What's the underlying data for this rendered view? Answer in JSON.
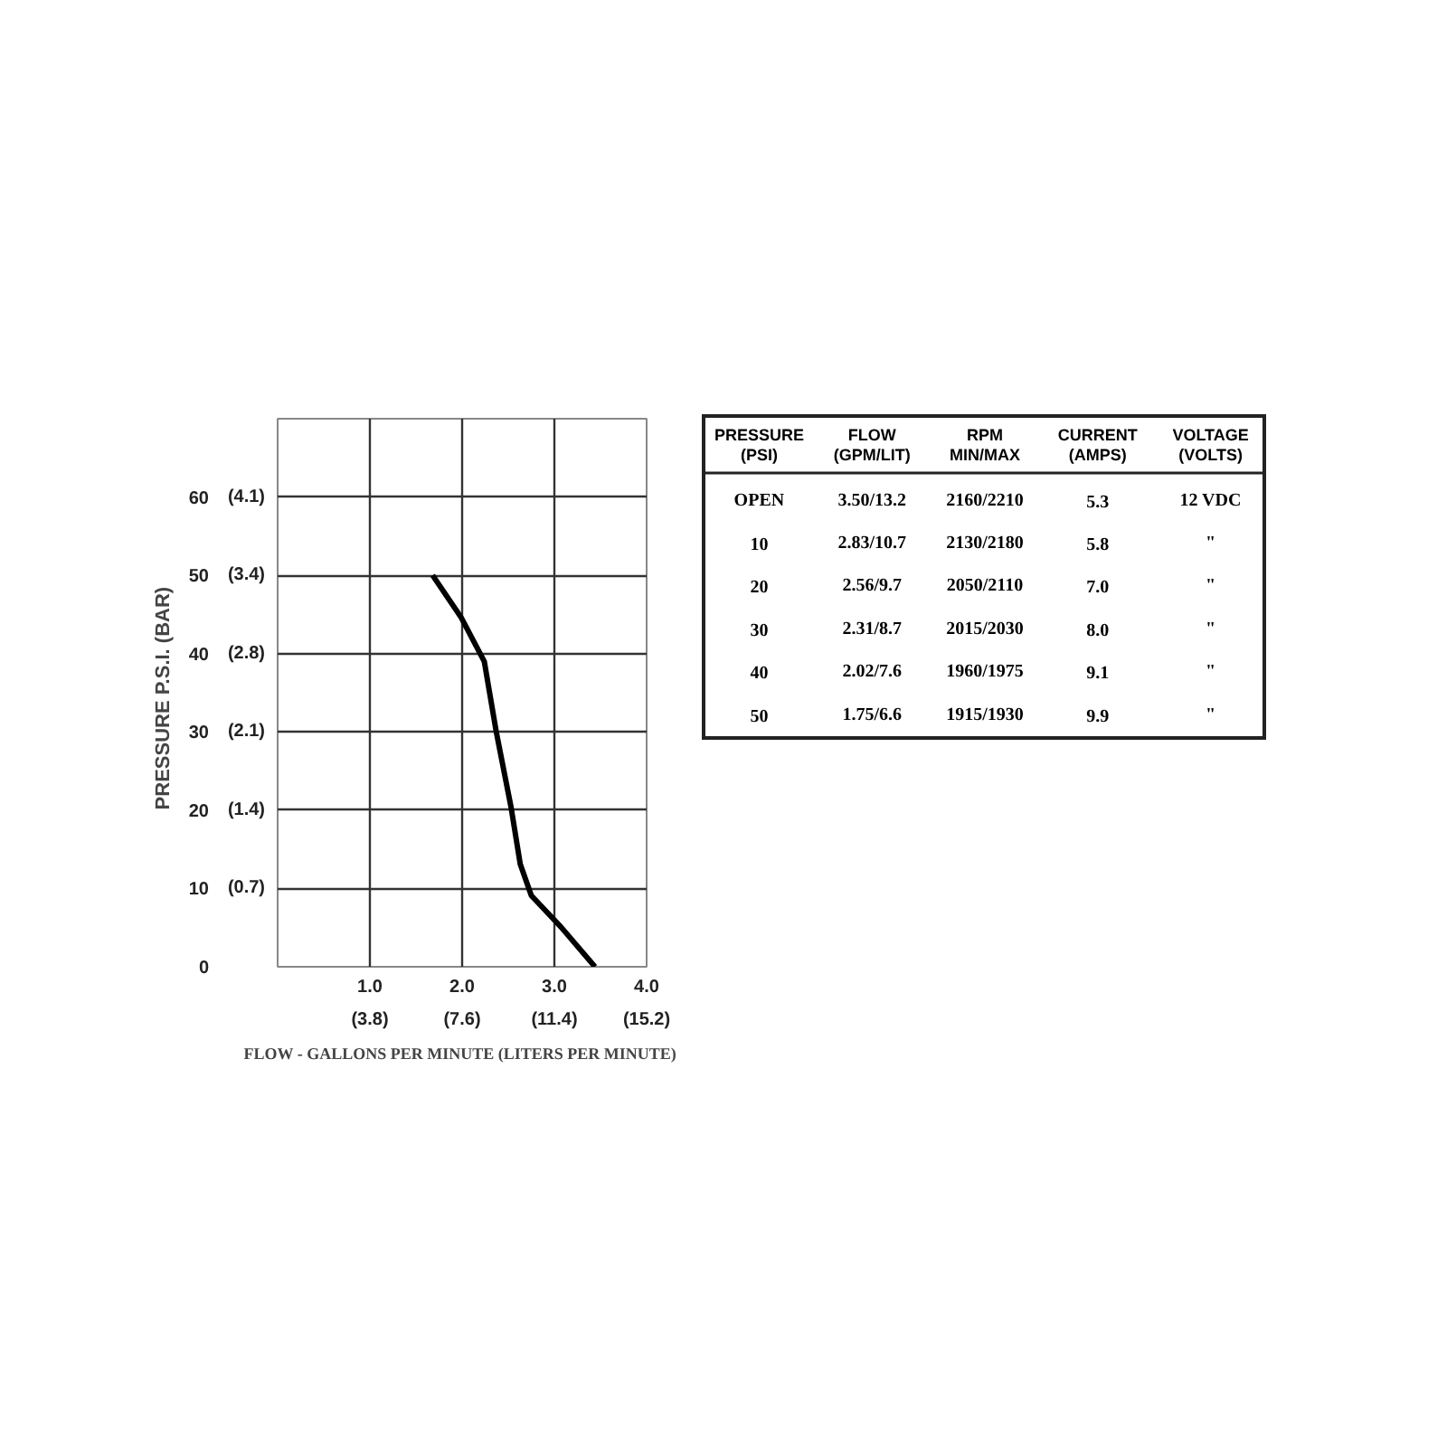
{
  "chart_data": [
    {
      "type": "line",
      "xlabel": "FLOW - GALLONS PER MINUTE  (LITERS PER MINUTE)",
      "ylabel": "PRESSURE  P.S.I.  (BAR)",
      "series": [
        {
          "color": "#000000",
          "x": [
            1.68,
            1.99,
            2.24,
            2.37,
            2.53,
            2.63,
            2.75,
            3.07,
            3.44
          ],
          "values": [
            50,
            44.6,
            39,
            30,
            20.4,
            13.1,
            9.1,
            5.1,
            0
          ]
        }
      ],
      "xlim": [
        0,
        4
      ],
      "ylim": [
        0,
        70
      ],
      "xticks": [
        {
          "value": 1,
          "label": "1.0"
        },
        {
          "value": 2,
          "label": "2.0"
        },
        {
          "value": 3,
          "label": "3.0"
        },
        {
          "value": 4,
          "label": "4.0"
        }
      ],
      "yticks": [
        0,
        10,
        20,
        30,
        40,
        50,
        60
      ],
      "x2lim": [
        0,
        15.2
      ],
      "x2ticks": [
        {
          "value": 3.8,
          "label": "(3.8)"
        },
        {
          "value": 7.6,
          "label": "(7.6)"
        },
        {
          "value": 11.4,
          "label": "(11.4)"
        },
        {
          "value": 15.2,
          "label": "(15.2)"
        }
      ],
      "y2lim": [
        0,
        4.83
      ],
      "y2ticks": [
        {
          "value": 0.69,
          "label": "(0.7)"
        },
        {
          "value": 1.38,
          "label": "(1.4)"
        },
        {
          "value": 2.07,
          "label": "(2.1)"
        },
        {
          "value": 2.76,
          "label": "(2.8)"
        },
        {
          "value": 3.45,
          "label": "(3.4)"
        },
        {
          "value": 4.14,
          "label": "(4.1)"
        }
      ],
      "grid": true,
      "marker": "none",
      "line_style": "solid"
    },
    {
      "type": "other",
      "categories": [
        "PRESSURE\n(PSI)",
        "FLOW\n(GPM/LIT)",
        "RPM\nMIN/MAX",
        "CURRENT\n(AMPS)",
        "VOLTAGE\n(VOLTS)"
      ],
      "cell_labels": [
        [
          "OPEN",
          "3.50/13.2",
          "2160/2210",
          "5.3",
          "12 VDC"
        ],
        [
          "10",
          "2.83/10.7",
          "2130/2180",
          "5.8",
          "\""
        ],
        [
          "20",
          "2.56/9.7",
          "2050/2110",
          "7.0",
          "\""
        ],
        [
          "30",
          "2.31/8.7",
          "2015/2030",
          "8.0",
          "\""
        ],
        [
          "40",
          "2.02/7.6",
          "1960/1975",
          "9.1",
          "\""
        ],
        [
          "50",
          "1.75/6.6",
          "1915/1930",
          "9.9",
          "\""
        ]
      ]
    }
  ]
}
